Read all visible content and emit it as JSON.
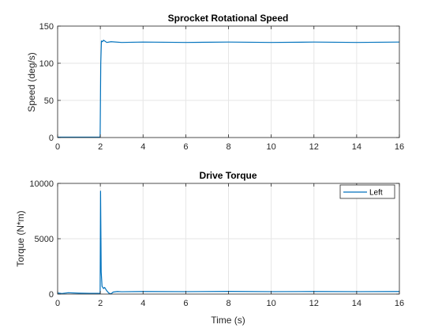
{
  "chart_data": [
    {
      "type": "line",
      "title": "Sprocket Rotational Speed",
      "xlabel": "",
      "ylabel": "Speed (deg/s)",
      "xlim": [
        0,
        16
      ],
      "ylim": [
        0,
        150
      ],
      "xticks": [
        0,
        2,
        4,
        6,
        8,
        10,
        12,
        14,
        16
      ],
      "yticks": [
        0,
        50,
        100,
        150
      ],
      "grid": true,
      "color": "#0072BD",
      "series": [
        {
          "points": [
            [
              0,
              0.5
            ],
            [
              1.99,
              0.5
            ],
            [
              2.02,
              100
            ],
            [
              2.05,
              130
            ],
            [
              2.1,
              129
            ],
            [
              2.15,
              131
            ],
            [
              2.2,
              130
            ],
            [
              2.3,
              128
            ],
            [
              2.5,
              129
            ],
            [
              3,
              128
            ],
            [
              4,
              128.5
            ],
            [
              6,
              128
            ],
            [
              8,
              128.5
            ],
            [
              10,
              128
            ],
            [
              12,
              128.5
            ],
            [
              14,
              128
            ],
            [
              16,
              128.5
            ]
          ]
        }
      ]
    },
    {
      "type": "line",
      "title": "Drive Torque",
      "xlabel": "Time (s)",
      "ylabel": "Torque (N*m)",
      "xlim": [
        0,
        16
      ],
      "ylim": [
        0,
        10000
      ],
      "xticks": [
        0,
        2,
        4,
        6,
        8,
        10,
        12,
        14,
        16
      ],
      "yticks": [
        0,
        5000,
        10000
      ],
      "grid": true,
      "legend": "top-right",
      "color": "#0072BD",
      "series": [
        {
          "name": "Left",
          "points": [
            [
              0,
              100
            ],
            [
              0.2,
              50
            ],
            [
              0.5,
              120
            ],
            [
              1,
              80
            ],
            [
              1.5,
              60
            ],
            [
              1.99,
              60
            ],
            [
              2.01,
              9300
            ],
            [
              2.04,
              2000
            ],
            [
              2.08,
              700
            ],
            [
              2.15,
              500
            ],
            [
              2.2,
              600
            ],
            [
              2.3,
              300
            ],
            [
              2.4,
              80
            ],
            [
              2.5,
              20
            ],
            [
              2.6,
              180
            ],
            [
              2.8,
              230
            ],
            [
              3,
              210
            ],
            [
              4,
              230
            ],
            [
              6,
              220
            ],
            [
              8,
              240
            ],
            [
              10,
              220
            ],
            [
              12,
              230
            ],
            [
              14,
              220
            ],
            [
              16,
              230
            ]
          ]
        }
      ]
    }
  ]
}
